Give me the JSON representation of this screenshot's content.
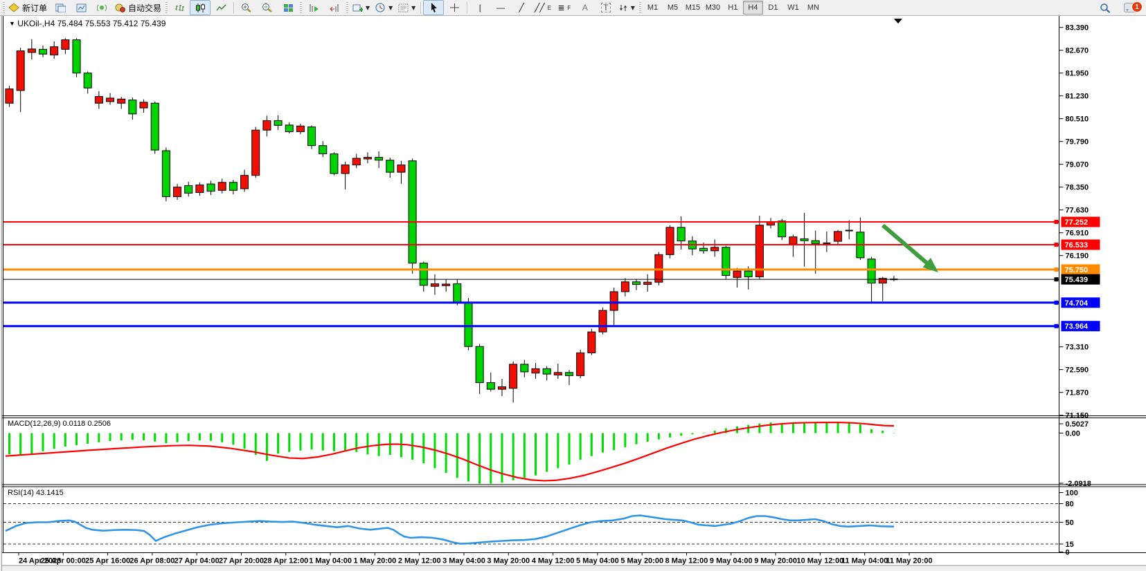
{
  "toolbar": {
    "new_order_label": "新订单",
    "auto_trading_label": "自动交易",
    "text_tool_label": "A",
    "text_label_tool": "T",
    "channel_tool_sub": "E",
    "fibo_tool_sub": "F",
    "dropdown_glyph": "▾",
    "timeframes": [
      "M1",
      "M5",
      "M15",
      "M30",
      "H1",
      "H4",
      "D1",
      "W1",
      "MN"
    ],
    "active_timeframe": "H4",
    "notification_count": "1"
  },
  "chart": {
    "title_symbol": "UKOil-,H4",
    "title_ohlc": "75.484 75.553 75.412 75.439",
    "title_arrow": "▼",
    "macd_label": "MACD(12,26,9) 0.0118 0.2506",
    "rsi_label": "RSI(14) 43.1415"
  },
  "chart_data": [
    {
      "type": "candlestick",
      "title": "UKOil-,H4",
      "timeframe": "H4",
      "open": 75.484,
      "high": 75.553,
      "low": 75.412,
      "close": 75.439,
      "bull_color": "#ee1005",
      "bear_color": "#00d400",
      "outline_color": "#000000",
      "background": "#ffffff",
      "y_ticks": [
        "83.390",
        "82.670",
        "81.950",
        "81.230",
        "80.510",
        "79.790",
        "79.070",
        "78.350",
        "77.630",
        "76.910",
        "76.190",
        "73.310",
        "72.590",
        "71.870",
        "71.150"
      ],
      "x_labels": [
        "24 Apr 2023",
        "25 Apr 00:00",
        "25 Apr 16:00",
        "26 Apr 08:00",
        "27 Apr 04:00",
        "27 Apr 20:00",
        "28 Apr 12:00",
        "1 May 04:00",
        "1 May 20:00",
        "2 May 12:00",
        "3 May 04:00",
        "3 May 20:00",
        "4 May 12:00",
        "5 May 04:00",
        "5 May 20:00",
        "8 May 12:00",
        "9 May 04:00",
        "9 May 20:00",
        "10 May 12:00",
        "11 May 04:00",
        "11 May 20:00"
      ],
      "hlines": [
        {
          "price": 77.252,
          "label": "77.252",
          "color": "#ff0000",
          "width": 2
        },
        {
          "price": 76.533,
          "label": "76.533",
          "color": "#ff0000",
          "width": 2
        },
        {
          "price": 75.75,
          "label": "75.750",
          "color": "#ff8c00",
          "width": 3
        },
        {
          "price": 75.439,
          "label": "75.439",
          "color": "#000000",
          "width": 1
        },
        {
          "price": 74.704,
          "label": "74.704",
          "color": "#0000ff",
          "width": 3
        },
        {
          "price": 73.964,
          "label": "73.964",
          "color": "#0000ff",
          "width": 3
        }
      ],
      "arrow_annotation": {
        "from": [
          1272,
          303
        ],
        "to": [
          1352,
          371
        ],
        "color": "#3e9e3e"
      },
      "candles": [
        [
          81.0,
          81.55,
          80.88,
          81.45
        ],
        [
          81.4,
          82.75,
          80.72,
          82.65
        ],
        [
          82.6,
          83.02,
          82.38,
          82.71
        ],
        [
          82.7,
          82.82,
          82.45,
          82.55
        ],
        [
          82.52,
          82.95,
          82.4,
          82.78
        ],
        [
          82.7,
          83.05,
          82.55,
          83.0
        ],
        [
          83.0,
          83.05,
          81.82,
          81.95
        ],
        [
          81.95,
          82.0,
          81.3,
          81.48
        ],
        [
          81.0,
          81.38,
          80.82,
          81.21
        ],
        [
          81.05,
          81.32,
          80.95,
          81.16
        ],
        [
          81.0,
          81.2,
          80.82,
          81.13
        ],
        [
          81.1,
          81.18,
          80.48,
          80.66
        ],
        [
          80.85,
          81.12,
          80.7,
          81.03
        ],
        [
          81.0,
          81.05,
          79.4,
          79.52
        ],
        [
          79.5,
          79.6,
          77.9,
          78.05
        ],
        [
          78.05,
          78.45,
          77.95,
          78.35
        ],
        [
          78.4,
          78.52,
          78.05,
          78.16
        ],
        [
          78.18,
          78.5,
          78.08,
          78.42
        ],
        [
          78.45,
          78.55,
          78.1,
          78.22
        ],
        [
          78.25,
          78.62,
          78.15,
          78.5
        ],
        [
          78.5,
          78.58,
          78.12,
          78.25
        ],
        [
          78.3,
          78.9,
          78.2,
          78.72
        ],
        [
          78.72,
          80.25,
          78.65,
          80.15
        ],
        [
          80.15,
          80.6,
          79.95,
          80.45
        ],
        [
          80.45,
          80.62,
          80.15,
          80.3
        ],
        [
          80.31,
          80.4,
          80.05,
          80.1
        ],
        [
          80.1,
          80.35,
          80.02,
          80.28
        ],
        [
          80.25,
          80.3,
          79.55,
          79.66
        ],
        [
          79.66,
          79.8,
          79.3,
          79.4
        ],
        [
          79.4,
          79.45,
          78.72,
          78.78
        ],
        [
          78.78,
          79.15,
          78.28,
          79.05
        ],
        [
          79.05,
          79.4,
          78.95,
          79.26
        ],
        [
          79.24,
          79.45,
          79.1,
          79.29
        ],
        [
          79.29,
          79.48,
          78.95,
          79.2
        ],
        [
          79.2,
          79.28,
          78.65,
          78.82
        ],
        [
          78.82,
          79.18,
          78.45,
          79.05
        ],
        [
          79.18,
          79.25,
          75.62,
          75.95
        ],
        [
          75.95,
          76.0,
          75.05,
          75.25
        ],
        [
          75.22,
          75.6,
          74.95,
          75.3
        ],
        [
          75.24,
          75.45,
          75.05,
          75.29
        ],
        [
          75.3,
          75.45,
          74.62,
          74.72
        ],
        [
          74.72,
          74.85,
          73.2,
          73.32
        ],
        [
          73.32,
          73.4,
          71.82,
          72.18
        ],
        [
          72.18,
          72.5,
          71.9,
          71.97
        ],
        [
          71.97,
          72.3,
          71.75,
          72.05
        ],
        [
          72.0,
          72.85,
          71.55,
          72.76
        ],
        [
          72.76,
          72.9,
          72.35,
          72.52
        ],
        [
          72.48,
          72.8,
          72.3,
          72.62
        ],
        [
          72.62,
          72.7,
          72.25,
          72.45
        ],
        [
          72.42,
          72.78,
          72.3,
          72.5
        ],
        [
          72.5,
          72.58,
          72.1,
          72.4
        ],
        [
          72.4,
          73.22,
          72.32,
          73.12
        ],
        [
          73.12,
          73.88,
          73.05,
          73.78
        ],
        [
          73.78,
          74.55,
          73.7,
          74.46
        ],
        [
          74.46,
          75.18,
          74.0,
          75.05
        ],
        [
          75.05,
          75.48,
          74.9,
          75.36
        ],
        [
          75.36,
          75.45,
          75.1,
          75.28
        ],
        [
          75.28,
          75.6,
          75.05,
          75.35
        ],
        [
          75.35,
          76.3,
          75.25,
          76.22
        ],
        [
          76.22,
          77.15,
          76.1,
          77.08
        ],
        [
          77.08,
          77.43,
          76.38,
          76.65
        ],
        [
          76.65,
          76.8,
          76.2,
          76.4
        ],
        [
          76.42,
          76.6,
          76.25,
          76.34
        ],
        [
          76.34,
          76.7,
          76.15,
          76.45
        ],
        [
          76.45,
          76.5,
          75.45,
          75.56
        ],
        [
          75.5,
          75.8,
          75.18,
          75.7
        ],
        [
          75.7,
          75.85,
          75.12,
          75.52
        ],
        [
          75.52,
          77.45,
          75.45,
          77.15
        ],
        [
          77.15,
          77.38,
          77.05,
          77.26
        ],
        [
          77.28,
          77.35,
          76.68,
          76.78
        ],
        [
          76.55,
          76.85,
          76.15,
          76.78
        ],
        [
          76.72,
          77.54,
          75.84,
          76.66
        ],
        [
          76.66,
          76.98,
          75.62,
          76.56
        ],
        [
          76.58,
          76.95,
          76.3,
          76.58
        ],
        [
          76.64,
          77.0,
          76.55,
          76.95
        ],
        [
          76.98,
          77.3,
          76.7,
          76.98
        ],
        [
          76.93,
          77.39,
          76.05,
          76.12
        ],
        [
          76.08,
          76.15,
          74.68,
          75.32
        ],
        [
          75.32,
          75.52,
          74.75,
          75.47
        ],
        [
          75.46,
          75.55,
          75.38,
          75.439
        ]
      ]
    },
    {
      "type": "bar",
      "name": "MACD",
      "label": "MACD(12,26,9) 0.0118 0.2506",
      "main_value": 0.0118,
      "signal_value": 0.2506,
      "histogram_color": "#00dd00",
      "signal_color": "#ff0000",
      "y_ticks": [
        "0.5027",
        "0.00",
        "-2.0918"
      ],
      "y_tick_values": [
        0.5027,
        0.0,
        -2.0918
      ],
      "values": [
        -0.88,
        -0.92,
        -0.85,
        -0.75,
        -0.65,
        -0.56,
        -0.5,
        -0.44,
        -0.38,
        -0.33,
        -0.3,
        -0.28,
        -0.3,
        -0.35,
        -0.42,
        -0.38,
        -0.33,
        -0.3,
        -0.32,
        -0.38,
        -0.48,
        -0.65,
        -0.9,
        -1.15,
        -0.85,
        -0.78,
        -0.72,
        -0.68,
        -0.72,
        -0.75,
        -0.72,
        -0.78,
        -0.88,
        -0.95,
        -0.9,
        -1.0,
        -1.1,
        -1.25,
        -1.45,
        -1.65,
        -1.85,
        -2.0,
        -2.09,
        -2.09,
        -2.05,
        -1.95,
        -1.85,
        -1.75,
        -1.6,
        -1.45,
        -1.3,
        -1.1,
        -0.95,
        -0.8,
        -0.7,
        -0.58,
        -0.46,
        -0.36,
        -0.26,
        -0.18,
        -0.11,
        -0.05,
        0.02,
        0.1,
        0.2,
        0.28,
        0.34,
        0.4,
        0.44,
        0.42,
        0.4,
        0.42,
        0.43,
        0.45,
        0.42,
        0.46,
        0.36,
        0.16,
        0.1,
        0.012
      ],
      "signal_line": [
        [
          5,
          -0.95
        ],
        [
          45,
          -0.87
        ],
        [
          85,
          -0.79
        ],
        [
          125,
          -0.71
        ],
        [
          165,
          -0.64
        ],
        [
          205,
          -0.57
        ],
        [
          245,
          -0.52
        ],
        [
          270,
          -0.505
        ],
        [
          300,
          -0.54
        ],
        [
          330,
          -0.63
        ],
        [
          360,
          -0.76
        ],
        [
          390,
          -0.92
        ],
        [
          415,
          -1.03
        ],
        [
          435,
          -1.05
        ],
        [
          455,
          -0.99
        ],
        [
          475,
          -0.88
        ],
        [
          495,
          -0.74
        ],
        [
          515,
          -0.61
        ],
        [
          535,
          -0.52
        ],
        [
          555,
          -0.465
        ],
        [
          570,
          -0.455
        ],
        [
          585,
          -0.48
        ],
        [
          605,
          -0.57
        ],
        [
          625,
          -0.7
        ],
        [
          645,
          -0.87
        ],
        [
          665,
          -1.07
        ],
        [
          685,
          -1.3
        ],
        [
          705,
          -1.52
        ],
        [
          725,
          -1.7
        ],
        [
          745,
          -1.84
        ],
        [
          765,
          -1.94
        ],
        [
          783,
          -1.97
        ],
        [
          800,
          -1.95
        ],
        [
          820,
          -1.87
        ],
        [
          840,
          -1.75
        ],
        [
          860,
          -1.59
        ],
        [
          880,
          -1.42
        ],
        [
          900,
          -1.24
        ],
        [
          920,
          -1.04
        ],
        [
          940,
          -0.83
        ],
        [
          960,
          -0.62
        ],
        [
          980,
          -0.43
        ],
        [
          1000,
          -0.25
        ],
        [
          1020,
          -0.1
        ],
        [
          1040,
          0.03
        ],
        [
          1060,
          0.14
        ],
        [
          1080,
          0.23
        ],
        [
          1100,
          0.31
        ],
        [
          1120,
          0.37
        ],
        [
          1140,
          0.41
        ],
        [
          1160,
          0.43
        ],
        [
          1185,
          0.44
        ],
        [
          1210,
          0.44
        ],
        [
          1230,
          0.42
        ],
        [
          1248,
          0.38
        ],
        [
          1262,
          0.34
        ],
        [
          1274,
          0.31
        ],
        [
          1288,
          0.3
        ]
      ]
    },
    {
      "type": "line",
      "name": "RSI",
      "label": "RSI(14) 43.1415",
      "current_value": 43.1415,
      "line_color": "#2f94e8",
      "levels": [
        80,
        50,
        15
      ],
      "y_ticks": [
        "100",
        "80",
        "50",
        "15",
        "0"
      ],
      "y_tick_values": [
        100,
        80,
        50,
        15,
        0
      ],
      "points": [
        [
          5,
          36
        ],
        [
          20,
          44
        ],
        [
          35,
          49
        ],
        [
          50,
          50
        ],
        [
          66,
          50
        ],
        [
          82,
          52
        ],
        [
          97,
          53
        ],
        [
          105,
          51
        ],
        [
          113,
          46
        ],
        [
          121,
          41
        ],
        [
          130,
          38
        ],
        [
          146,
          36.5
        ],
        [
          162,
          37.5
        ],
        [
          178,
          38
        ],
        [
          194,
          37.5
        ],
        [
          205,
          36
        ],
        [
          213,
          30
        ],
        [
          222,
          20
        ],
        [
          234,
          26
        ],
        [
          250,
          32
        ],
        [
          266,
          37
        ],
        [
          282,
          42
        ],
        [
          300,
          46
        ],
        [
          320,
          48.5
        ],
        [
          340,
          50
        ],
        [
          356,
          51
        ],
        [
          372,
          52
        ],
        [
          389,
          51
        ],
        [
          405,
          50.5
        ],
        [
          420,
          51
        ],
        [
          436,
          49
        ],
        [
          452,
          46
        ],
        [
          468,
          44
        ],
        [
          484,
          42
        ],
        [
          500,
          44
        ],
        [
          516,
          40
        ],
        [
          532,
          38
        ],
        [
          548,
          40
        ],
        [
          557,
          41
        ],
        [
          565,
          38
        ],
        [
          573,
          32
        ],
        [
          581,
          27
        ],
        [
          590,
          25
        ],
        [
          606,
          26
        ],
        [
          622,
          25
        ],
        [
          638,
          22
        ],
        [
          650,
          18
        ],
        [
          662,
          15.5
        ],
        [
          674,
          16
        ],
        [
          690,
          17.5
        ],
        [
          706,
          19
        ],
        [
          722,
          20
        ],
        [
          738,
          21
        ],
        [
          754,
          21.5
        ],
        [
          770,
          23
        ],
        [
          786,
          27
        ],
        [
          802,
          33
        ],
        [
          818,
          39
        ],
        [
          834,
          45
        ],
        [
          850,
          50
        ],
        [
          866,
          52
        ],
        [
          882,
          53
        ],
        [
          898,
          56
        ],
        [
          910,
          60
        ],
        [
          922,
          61
        ],
        [
          934,
          59
        ],
        [
          946,
          57
        ],
        [
          958,
          55
        ],
        [
          970,
          54
        ],
        [
          982,
          53
        ],
        [
          994,
          50
        ],
        [
          1006,
          46
        ],
        [
          1018,
          45
        ],
        [
          1030,
          44
        ],
        [
          1042,
          46
        ],
        [
          1054,
          48
        ],
        [
          1066,
          52
        ],
        [
          1078,
          57
        ],
        [
          1090,
          60
        ],
        [
          1102,
          60
        ],
        [
          1114,
          58
        ],
        [
          1126,
          55
        ],
        [
          1138,
          53
        ],
        [
          1150,
          53
        ],
        [
          1162,
          54
        ],
        [
          1174,
          55
        ],
        [
          1186,
          52
        ],
        [
          1198,
          47
        ],
        [
          1210,
          44
        ],
        [
          1222,
          43
        ],
        [
          1238,
          44
        ],
        [
          1254,
          45
        ],
        [
          1270,
          43.5
        ],
        [
          1288,
          43.1
        ]
      ]
    }
  ]
}
